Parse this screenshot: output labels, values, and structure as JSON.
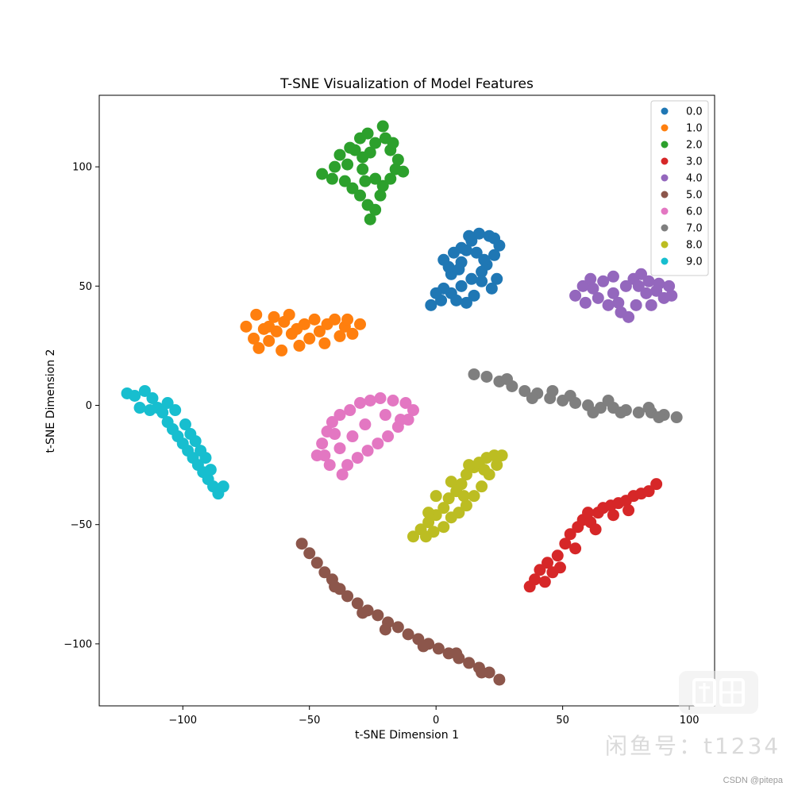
{
  "chart_data": {
    "type": "scatter",
    "title": "T-SNE Visualization of Model Features",
    "xlabel": "t-SNE Dimension 1",
    "ylabel": "t-SNE Dimension 2",
    "xlim": [
      -133,
      110
    ],
    "ylim": [
      -126,
      130
    ],
    "x_ticks": [
      -100,
      -50,
      0,
      50,
      100
    ],
    "x_tick_labels": [
      "−100",
      "−50",
      "0",
      "50",
      "100"
    ],
    "y_ticks": [
      -100,
      -50,
      0,
      50,
      100
    ],
    "y_tick_labels": [
      "−100",
      "−50",
      "0",
      "50",
      "100"
    ],
    "grid": false,
    "legend_position": "top-right",
    "marker": "filled circle",
    "series": [
      {
        "name": "0.0",
        "color": "#1f77b4",
        "points": [
          [
            -2,
            42
          ],
          [
            2,
            44
          ],
          [
            6,
            47
          ],
          [
            10,
            50
          ],
          [
            14,
            53
          ],
          [
            18,
            56
          ],
          [
            20,
            59
          ],
          [
            24,
            53
          ],
          [
            22,
            49
          ],
          [
            15,
            46
          ],
          [
            8,
            44
          ],
          [
            3,
            49
          ],
          [
            6,
            55
          ],
          [
            10,
            60
          ],
          [
            12,
            65
          ],
          [
            7,
            64
          ],
          [
            5,
            58
          ],
          [
            10,
            66
          ],
          [
            14,
            69
          ],
          [
            17,
            72
          ],
          [
            21,
            71
          ],
          [
            25,
            67
          ],
          [
            23,
            63
          ],
          [
            19,
            61
          ],
          [
            16,
            64
          ],
          [
            13,
            71
          ],
          [
            3,
            61
          ],
          [
            9,
            57
          ],
          [
            18,
            52
          ],
          [
            0,
            47
          ],
          [
            12,
            43
          ],
          [
            23,
            70
          ]
        ]
      },
      {
        "name": "1.0",
        "color": "#ff7f0e",
        "points": [
          [
            -75,
            33
          ],
          [
            -72,
            28
          ],
          [
            -70,
            24
          ],
          [
            -66,
            27
          ],
          [
            -63,
            31
          ],
          [
            -60,
            35
          ],
          [
            -57,
            30
          ],
          [
            -54,
            25
          ],
          [
            -50,
            28
          ],
          [
            -46,
            31
          ],
          [
            -43,
            34
          ],
          [
            -40,
            36
          ],
          [
            -36,
            33
          ],
          [
            -33,
            30
          ],
          [
            -30,
            34
          ],
          [
            -38,
            29
          ],
          [
            -44,
            26
          ],
          [
            -52,
            34
          ],
          [
            -58,
            38
          ],
          [
            -64,
            37
          ],
          [
            -68,
            32
          ],
          [
            -61,
            23
          ],
          [
            -48,
            36
          ],
          [
            -35,
            36
          ],
          [
            -71,
            38
          ],
          [
            -55,
            32
          ],
          [
            -66,
            33
          ]
        ]
      },
      {
        "name": "2.0",
        "color": "#2ca02c",
        "points": [
          [
            -45,
            97
          ],
          [
            -40,
            100
          ],
          [
            -38,
            105
          ],
          [
            -36,
            94
          ],
          [
            -33,
            91
          ],
          [
            -30,
            88
          ],
          [
            -27,
            84
          ],
          [
            -26,
            78
          ],
          [
            -24,
            82
          ],
          [
            -22,
            88
          ],
          [
            -21,
            92
          ],
          [
            -18,
            95
          ],
          [
            -16,
            99
          ],
          [
            -13,
            98
          ],
          [
            -15,
            103
          ],
          [
            -18,
            107
          ],
          [
            -20,
            112
          ],
          [
            -21,
            117
          ],
          [
            -24,
            110
          ],
          [
            -26,
            106
          ],
          [
            -29,
            104
          ],
          [
            -32,
            107
          ],
          [
            -30,
            112
          ],
          [
            -27,
            114
          ],
          [
            -35,
            101
          ],
          [
            -24,
            95
          ],
          [
            -28,
            94
          ],
          [
            -34,
            108
          ],
          [
            -41,
            95
          ],
          [
            -17,
            110
          ],
          [
            -29,
            99
          ]
        ]
      },
      {
        "name": "3.0",
        "color": "#d62728",
        "points": [
          [
            37,
            -76
          ],
          [
            39,
            -73
          ],
          [
            41,
            -69
          ],
          [
            44,
            -66
          ],
          [
            46,
            -70
          ],
          [
            48,
            -63
          ],
          [
            51,
            -58
          ],
          [
            53,
            -54
          ],
          [
            56,
            -51
          ],
          [
            58,
            -48
          ],
          [
            61,
            -49
          ],
          [
            64,
            -45
          ],
          [
            66,
            -43
          ],
          [
            69,
            -42
          ],
          [
            72,
            -41
          ],
          [
            75,
            -40
          ],
          [
            78,
            -38
          ],
          [
            81,
            -37
          ],
          [
            84,
            -36
          ],
          [
            87,
            -33
          ],
          [
            76,
            -44
          ],
          [
            63,
            -52
          ],
          [
            55,
            -60
          ],
          [
            49,
            -68
          ],
          [
            43,
            -74
          ],
          [
            70,
            -46
          ],
          [
            60,
            -45
          ]
        ]
      },
      {
        "name": "4.0",
        "color": "#9467bd",
        "points": [
          [
            55,
            46
          ],
          [
            59,
            43
          ],
          [
            62,
            49
          ],
          [
            66,
            52
          ],
          [
            70,
            47
          ],
          [
            72,
            43
          ],
          [
            75,
            50
          ],
          [
            78,
            53
          ],
          [
            81,
            55
          ],
          [
            84,
            52
          ],
          [
            87,
            48
          ],
          [
            90,
            45
          ],
          [
            93,
            46
          ],
          [
            88,
            51
          ],
          [
            83,
            47
          ],
          [
            79,
            42
          ],
          [
            76,
            37
          ],
          [
            73,
            39
          ],
          [
            68,
            42
          ],
          [
            64,
            45
          ],
          [
            58,
            50
          ],
          [
            85,
            42
          ],
          [
            80,
            50
          ],
          [
            70,
            54
          ],
          [
            61,
            53
          ],
          [
            92,
            50
          ]
        ]
      },
      {
        "name": "5.0",
        "color": "#8c564b",
        "points": [
          [
            -53,
            -58
          ],
          [
            -50,
            -62
          ],
          [
            -47,
            -66
          ],
          [
            -44,
            -70
          ],
          [
            -41,
            -73
          ],
          [
            -38,
            -77
          ],
          [
            -35,
            -80
          ],
          [
            -31,
            -83
          ],
          [
            -27,
            -86
          ],
          [
            -23,
            -88
          ],
          [
            -19,
            -91
          ],
          [
            -15,
            -93
          ],
          [
            -11,
            -96
          ],
          [
            -7,
            -98
          ],
          [
            -3,
            -100
          ],
          [
            1,
            -102
          ],
          [
            5,
            -104
          ],
          [
            9,
            -106
          ],
          [
            13,
            -108
          ],
          [
            17,
            -110
          ],
          [
            21,
            -112
          ],
          [
            25,
            -115
          ],
          [
            -29,
            -87
          ],
          [
            -40,
            -76
          ],
          [
            -20,
            -94
          ],
          [
            -5,
            -101
          ],
          [
            8,
            -104
          ],
          [
            18,
            -112
          ]
        ]
      },
      {
        "name": "6.0",
        "color": "#e377c2",
        "points": [
          [
            -47,
            -21
          ],
          [
            -45,
            -16
          ],
          [
            -43,
            -11
          ],
          [
            -41,
            -7
          ],
          [
            -38,
            -4
          ],
          [
            -34,
            -2
          ],
          [
            -30,
            1
          ],
          [
            -26,
            2
          ],
          [
            -22,
            3
          ],
          [
            -17,
            2
          ],
          [
            -12,
            1
          ],
          [
            -9,
            -2
          ],
          [
            -11,
            -6
          ],
          [
            -15,
            -9
          ],
          [
            -19,
            -13
          ],
          [
            -23,
            -16
          ],
          [
            -27,
            -19
          ],
          [
            -31,
            -22
          ],
          [
            -35,
            -25
          ],
          [
            -37,
            -29
          ],
          [
            -42,
            -25
          ],
          [
            -44,
            -21
          ],
          [
            -33,
            -13
          ],
          [
            -28,
            -8
          ],
          [
            -38,
            -18
          ],
          [
            -20,
            -4
          ],
          [
            -14,
            -6
          ],
          [
            -40,
            -12
          ]
        ]
      },
      {
        "name": "7.0",
        "color": "#7f7f7f",
        "points": [
          [
            15,
            13
          ],
          [
            20,
            12
          ],
          [
            25,
            10
          ],
          [
            30,
            8
          ],
          [
            35,
            6
          ],
          [
            40,
            5
          ],
          [
            45,
            3
          ],
          [
            50,
            2
          ],
          [
            55,
            1
          ],
          [
            60,
            0
          ],
          [
            65,
            -1
          ],
          [
            70,
            -1
          ],
          [
            75,
            -2
          ],
          [
            80,
            -3
          ],
          [
            85,
            -3
          ],
          [
            90,
            -4
          ],
          [
            95,
            -5
          ],
          [
            46,
            6
          ],
          [
            53,
            4
          ],
          [
            62,
            -3
          ],
          [
            73,
            -3
          ],
          [
            84,
            -1
          ],
          [
            28,
            11
          ],
          [
            38,
            3
          ],
          [
            68,
            2
          ],
          [
            88,
            -5
          ]
        ]
      },
      {
        "name": "8.0",
        "color": "#bcbd22",
        "points": [
          [
            -9,
            -55
          ],
          [
            -6,
            -52
          ],
          [
            -3,
            -49
          ],
          [
            0,
            -46
          ],
          [
            3,
            -43
          ],
          [
            5,
            -39
          ],
          [
            8,
            -36
          ],
          [
            10,
            -33
          ],
          [
            12,
            -29
          ],
          [
            15,
            -26
          ],
          [
            17,
            -24
          ],
          [
            20,
            -22
          ],
          [
            23,
            -21
          ],
          [
            26,
            -21
          ],
          [
            24,
            -25
          ],
          [
            21,
            -29
          ],
          [
            18,
            -34
          ],
          [
            15,
            -38
          ],
          [
            12,
            -42
          ],
          [
            9,
            -45
          ],
          [
            6,
            -47
          ],
          [
            3,
            -51
          ],
          [
            -1,
            -53
          ],
          [
            -4,
            -55
          ],
          [
            0,
            -38
          ],
          [
            6,
            -32
          ],
          [
            13,
            -25
          ],
          [
            19,
            -27
          ],
          [
            -3,
            -45
          ],
          [
            11,
            -38
          ]
        ]
      },
      {
        "name": "9.0",
        "color": "#17becf",
        "points": [
          [
            -122,
            5
          ],
          [
            -119,
            4
          ],
          [
            -115,
            6
          ],
          [
            -112,
            3
          ],
          [
            -110,
            -1
          ],
          [
            -113,
            -2
          ],
          [
            -117,
            -1
          ],
          [
            -108,
            -3
          ],
          [
            -106,
            -7
          ],
          [
            -104,
            -10
          ],
          [
            -102,
            -13
          ],
          [
            -100,
            -16
          ],
          [
            -98,
            -19
          ],
          [
            -96,
            -22
          ],
          [
            -94,
            -25
          ],
          [
            -92,
            -28
          ],
          [
            -90,
            -31
          ],
          [
            -88,
            -34
          ],
          [
            -86,
            -37
          ],
          [
            -84,
            -34
          ],
          [
            -91,
            -22
          ],
          [
            -95,
            -15
          ],
          [
            -99,
            -8
          ],
          [
            -103,
            -2
          ],
          [
            -106,
            1
          ],
          [
            -89,
            -27
          ],
          [
            -97,
            -12
          ],
          [
            -93,
            -19
          ]
        ]
      }
    ]
  },
  "watermark": {
    "badge_icon": "fish-shop-icon",
    "text": "闲鱼号：t1234",
    "credit": "CSDN @pitepa"
  }
}
